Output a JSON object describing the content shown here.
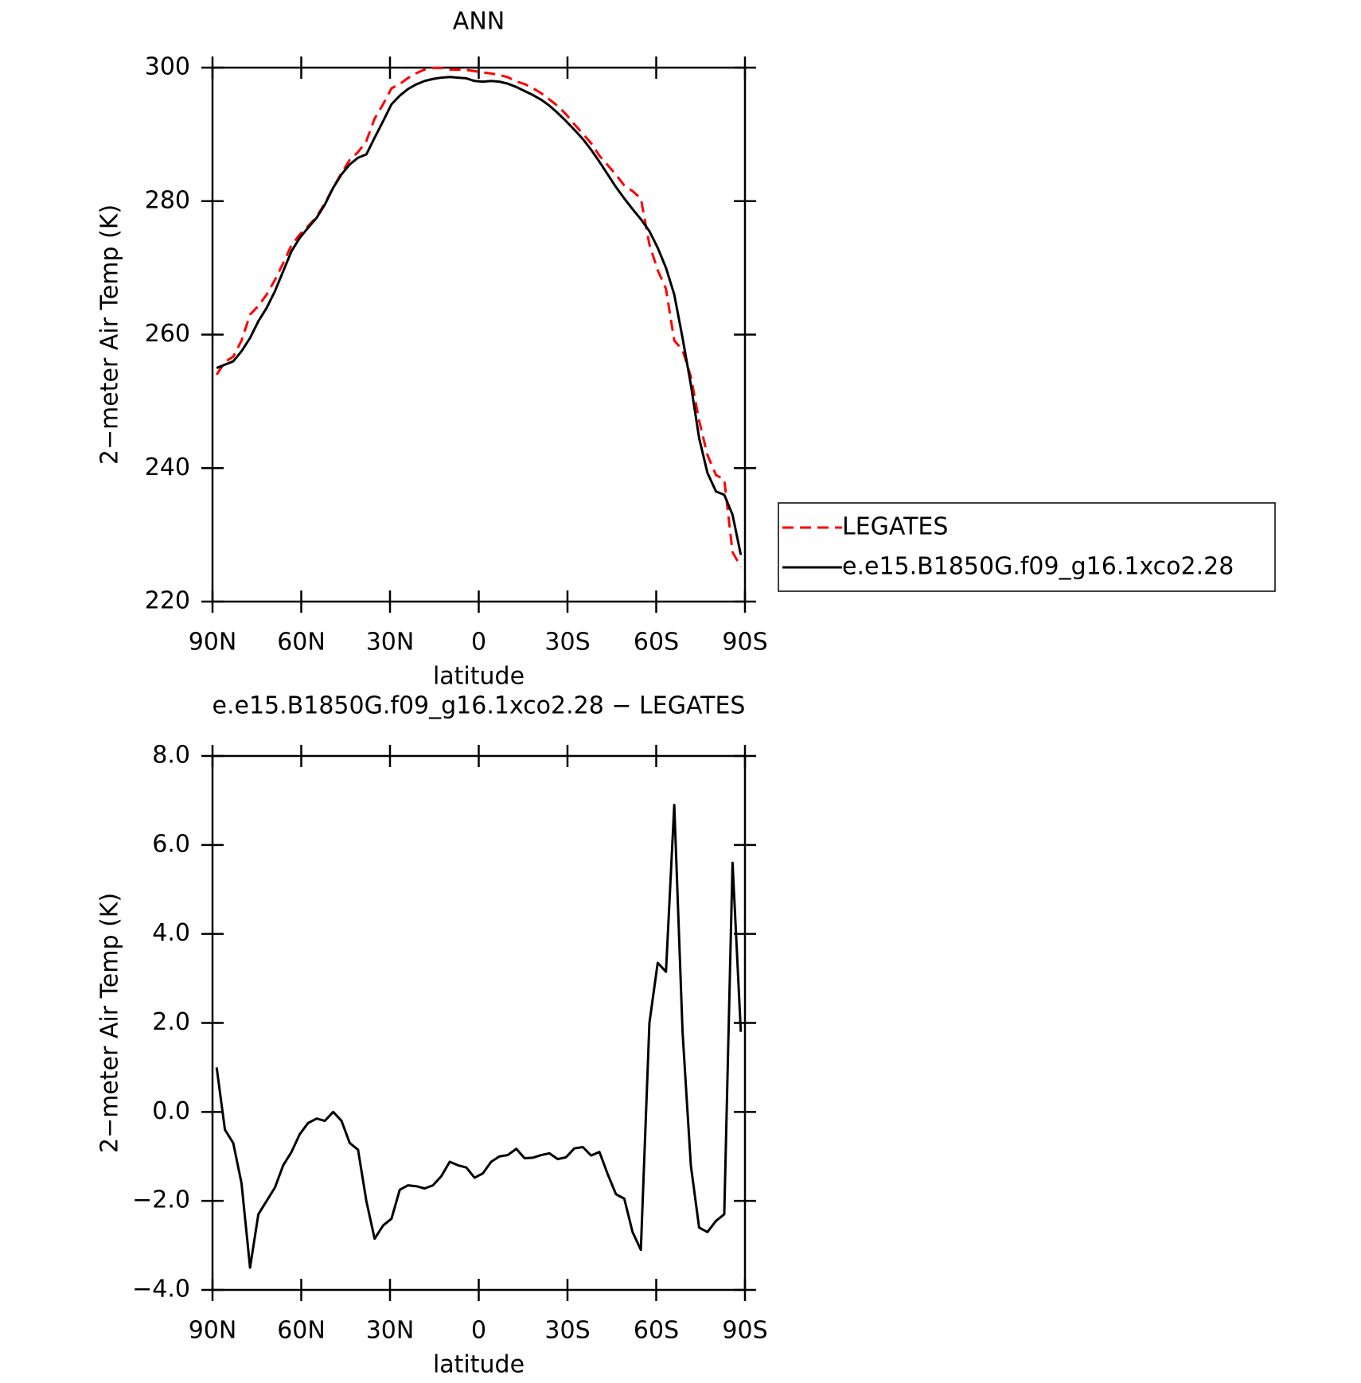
{
  "chart_data": [
    {
      "type": "line",
      "title": "ANN",
      "x_label": "latitude",
      "y_label": "2−meter Air Temp (K)",
      "x": [
        88.6,
        85.8,
        83.0,
        80.2,
        77.3,
        74.5,
        71.7,
        68.9,
        66.1,
        63.3,
        60.5,
        57.7,
        54.8,
        52.0,
        49.2,
        46.4,
        43.6,
        40.8,
        38.0,
        35.2,
        32.3,
        29.5,
        26.7,
        23.9,
        21.1,
        18.3,
        15.5,
        12.7,
        9.8,
        7.0,
        4.2,
        1.4,
        -1.4,
        -4.2,
        -7.0,
        -9.8,
        -12.7,
        -15.5,
        -18.3,
        -21.1,
        -23.9,
        -26.7,
        -29.5,
        -32.3,
        -35.2,
        -38.0,
        -40.8,
        -43.6,
        -46.4,
        -49.2,
        -52.0,
        -54.8,
        -57.7,
        -60.5,
        -63.3,
        -66.1,
        -68.9,
        -71.7,
        -74.5,
        -77.3,
        -80.2,
        -83.0,
        -85.8,
        -88.6
      ],
      "series": [
        {
          "name": "LEGATES",
          "color": "#ff0000",
          "dashed": true,
          "values": [
            254.0,
            255.9,
            256.7,
            259.1,
            263.0,
            264.3,
            266.0,
            268.2,
            270.7,
            273.4,
            275.0,
            276.25,
            277.65,
            279.7,
            282.0,
            284.2,
            286.2,
            287.35,
            289.0,
            292.35,
            294.55,
            296.9,
            297.55,
            298.45,
            299.17,
            299.72,
            299.95,
            299.95,
            299.72,
            299.7,
            299.65,
            299.48,
            299.28,
            299.12,
            298.9,
            298.57,
            297.93,
            297.54,
            296.93,
            296.17,
            295.23,
            294.26,
            293.02,
            291.52,
            290.09,
            288.68,
            286.8,
            285.4,
            283.95,
            282.35,
            281.5,
            280.4,
            273.5,
            269.65,
            266.85,
            259.1,
            257.7,
            253.7,
            247.1,
            242.0,
            238.95,
            238.3,
            227.4,
            225.2
          ]
        },
        {
          "name": "e.e15.B1850G.f09_g16.1xco2.28",
          "color": "#000000",
          "dashed": false,
          "values": [
            255.0,
            255.5,
            256.0,
            257.5,
            259.5,
            262.0,
            264.0,
            266.5,
            269.5,
            272.5,
            274.5,
            276.0,
            277.5,
            279.5,
            282.0,
            284.0,
            285.5,
            286.5,
            287.0,
            289.5,
            292.0,
            294.5,
            295.8,
            296.8,
            297.5,
            298.0,
            298.3,
            298.5,
            298.6,
            298.5,
            298.4,
            298.0,
            297.9,
            298.0,
            297.9,
            297.6,
            297.1,
            296.5,
            295.9,
            295.2,
            294.3,
            293.2,
            292.0,
            290.7,
            289.3,
            287.7,
            285.9,
            284.0,
            282.1,
            280.4,
            278.8,
            277.3,
            275.5,
            273.0,
            270.0,
            266.0,
            259.5,
            252.5,
            244.5,
            239.3,
            236.5,
            236.0,
            233.0,
            227.0
          ]
        }
      ],
      "xlim": [
        90,
        -90
      ],
      "xticks": [
        {
          "value": 90,
          "label": "90N"
        },
        {
          "value": 60,
          "label": "60N"
        },
        {
          "value": 30,
          "label": "30N"
        },
        0,
        {
          "value": -30,
          "label": "30S"
        },
        {
          "value": -60,
          "label": "60S"
        },
        {
          "value": -90,
          "label": "90S"
        }
      ],
      "ylim": [
        220,
        300
      ],
      "yticks": [
        220,
        240,
        260,
        280,
        300
      ],
      "legend": "right"
    },
    {
      "type": "line",
      "title": "e.e15.B1850G.f09_g16.1xco2.28 − LEGATES",
      "x_label": "latitude",
      "y_label": "2−meter Air Temp (K)",
      "x": [
        88.6,
        85.8,
        83.0,
        80.2,
        77.3,
        74.5,
        71.7,
        68.9,
        66.1,
        63.3,
        60.5,
        57.7,
        54.8,
        52.0,
        49.2,
        46.4,
        43.6,
        40.8,
        38.0,
        35.2,
        32.3,
        29.5,
        26.7,
        23.9,
        21.1,
        18.3,
        15.5,
        12.7,
        9.8,
        7.0,
        4.2,
        1.4,
        -1.4,
        -4.2,
        -7.0,
        -9.8,
        -12.7,
        -15.5,
        -18.3,
        -21.1,
        -23.9,
        -26.7,
        -29.5,
        -32.3,
        -35.2,
        -38.0,
        -40.8,
        -43.6,
        -46.4,
        -49.2,
        -52.0,
        -54.8,
        -57.7,
        -60.5,
        -63.3,
        -66.1,
        -68.9,
        -71.7,
        -74.5,
        -77.3,
        -80.2,
        -83.0,
        -85.8,
        -88.6
      ],
      "color": "#000000",
      "values": [
        1.0,
        -0.4,
        -0.7,
        -1.6,
        -3.5,
        -2.3,
        -2.0,
        -1.7,
        -1.2,
        -0.9,
        -0.5,
        -0.25,
        -0.15,
        -0.2,
        0.0,
        -0.2,
        -0.7,
        -0.85,
        -2.0,
        -2.85,
        -2.55,
        -2.4,
        -1.75,
        -1.65,
        -1.67,
        -1.72,
        -1.65,
        -1.45,
        -1.12,
        -1.2,
        -1.25,
        -1.48,
        -1.38,
        -1.12,
        -1.0,
        -0.97,
        -0.83,
        -1.04,
        -1.03,
        -0.97,
        -0.93,
        -1.06,
        -1.02,
        -0.82,
        -0.79,
        -0.98,
        -0.9,
        -1.4,
        -1.85,
        -1.95,
        -2.7,
        -3.1,
        2.0,
        3.35,
        3.15,
        6.9,
        1.8,
        -1.2,
        -2.6,
        -2.7,
        -2.45,
        -2.3,
        5.6,
        1.8
      ],
      "xlim": [
        90,
        -90
      ],
      "xticks": [
        {
          "value": 90,
          "label": "90N"
        },
        {
          "value": 60,
          "label": "60N"
        },
        {
          "value": 30,
          "label": "30N"
        },
        0,
        {
          "value": -30,
          "label": "30S"
        },
        {
          "value": -60,
          "label": "60S"
        },
        {
          "value": -90,
          "label": "90S"
        }
      ],
      "ylim": [
        -4,
        8
      ],
      "yticks": [
        {
          "value": -4,
          "label": "−4.0"
        },
        {
          "value": -2,
          "label": "−2.0"
        },
        {
          "value": 0,
          "label": "0.0"
        },
        {
          "value": 2,
          "label": "2.0"
        },
        {
          "value": 4,
          "label": "4.0"
        },
        {
          "value": 6,
          "label": "6.0"
        },
        {
          "value": 8,
          "label": "8.0"
        }
      ]
    }
  ]
}
